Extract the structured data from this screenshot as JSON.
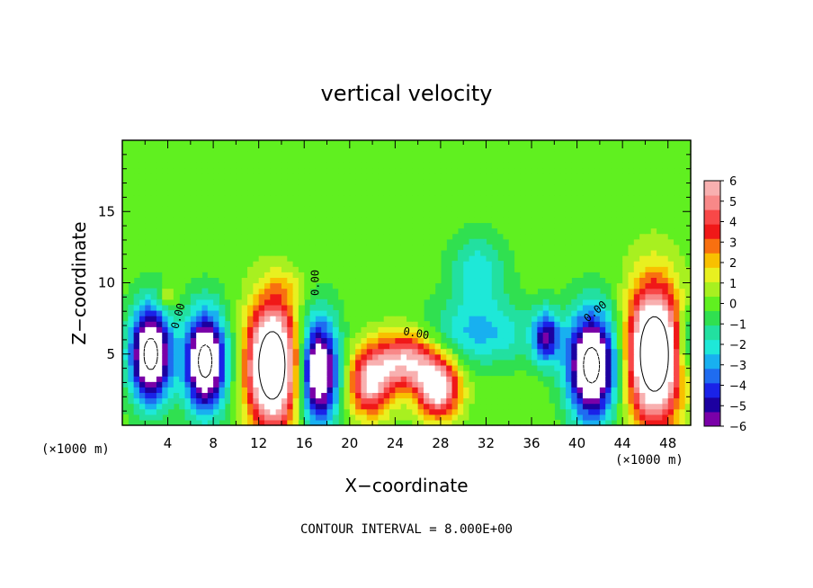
{
  "chart_data": {
    "type": "heatmap",
    "title": "vertical velocity",
    "xlabel": "X−coordinate",
    "ylabel": "Z−coordinate",
    "x_unit_left": "(×1000 m)",
    "x_unit_right": "(×1000 m)",
    "xlim": [
      0,
      50
    ],
    "ylim": [
      0,
      20
    ],
    "xticks": [
      4,
      8,
      12,
      16,
      20,
      24,
      28,
      32,
      36,
      40,
      44,
      48
    ],
    "yticks": [
      5,
      10,
      15
    ],
    "note": "CONTOUR INTERVAL = 8.000E+00",
    "contour_labels": [
      {
        "text": "0.00",
        "x": 17.3,
        "y": 10.0,
        "rotate": -90
      },
      {
        "text": "0.00",
        "x": 5.2,
        "y": 7.6,
        "rotate": -75
      },
      {
        "text": "0.00",
        "x": 25.8,
        "y": 6.2,
        "rotate": 10
      },
      {
        "text": "0.00",
        "x": 41.8,
        "y": 7.8,
        "rotate": -40
      }
    ],
    "colorbar": {
      "min": -6,
      "max": 6,
      "ticks": [
        "6",
        "5",
        "4",
        "3",
        "2",
        "1",
        "0",
        "−1",
        "−2",
        "−3",
        "−4",
        "−5",
        "−6"
      ],
      "colors": [
        "#7a00a8",
        "#1c00a0",
        "#1a22e8",
        "#1f6cf0",
        "#18b0f0",
        "#1ee8d8",
        "#22e0a0",
        "#30e050",
        "#60f020",
        "#a8f020",
        "#e8f020",
        "#f8c000",
        "#f87010",
        "#f01818",
        "#f84848",
        "#f88888",
        "#f8b0b0"
      ]
    },
    "features": [
      {
        "kind": "down",
        "x": 2.5,
        "z": 5.0,
        "sx": 1.25,
        "sz": 2.3,
        "amp": 9.0
      },
      {
        "kind": "down",
        "x": 7.3,
        "z": 4.5,
        "sx": 1.25,
        "sz": 2.4,
        "amp": 9.0
      },
      {
        "kind": "up",
        "x": 13.2,
        "z": 4.2,
        "sx": 1.5,
        "sz": 3.0,
        "amp": 11.0
      },
      {
        "kind": "down",
        "x": 17.3,
        "z": 3.8,
        "sx": 1.2,
        "sz": 2.6,
        "amp": 8.0
      },
      {
        "kind": "up",
        "x": 21.8,
        "z": 3.0,
        "sx": 1.3,
        "sz": 1.6,
        "amp": 6.0
      },
      {
        "kind": "up",
        "x": 25.0,
        "z": 4.6,
        "sx": 1.9,
        "sz": 1.4,
        "amp": 6.0
      },
      {
        "kind": "up",
        "x": 27.8,
        "z": 2.6,
        "sx": 1.3,
        "sz": 1.4,
        "amp": 7.0
      },
      {
        "kind": "down",
        "x": 31.5,
        "z": 6.5,
        "sx": 3.5,
        "sz": 1.6,
        "amp": 2.6
      },
      {
        "kind": "down",
        "x": 31.3,
        "z": 10.8,
        "sx": 1.7,
        "sz": 1.8,
        "amp": 2.3
      },
      {
        "kind": "down",
        "x": 37.3,
        "z": 6.2,
        "sx": 0.8,
        "sz": 1.3,
        "amp": 4.8
      },
      {
        "kind": "down",
        "x": 41.3,
        "z": 4.2,
        "sx": 1.5,
        "sz": 2.6,
        "amp": 9.0
      },
      {
        "kind": "up",
        "x": 46.8,
        "z": 5.0,
        "sx": 1.6,
        "sz": 3.3,
        "amp": 11.0
      },
      {
        "kind": "down",
        "x": 49.5,
        "z": 6.0,
        "sx": 0.6,
        "sz": 1.6,
        "amp": 3.0
      },
      {
        "kind": "up",
        "x": 4.0,
        "z": 9.0,
        "sx": 0.6,
        "sz": 0.6,
        "amp": 1.8
      },
      {
        "kind": "up",
        "x": 14.5,
        "z": 9.8,
        "sx": 1.2,
        "sz": 0.8,
        "amp": 1.0
      }
    ]
  }
}
